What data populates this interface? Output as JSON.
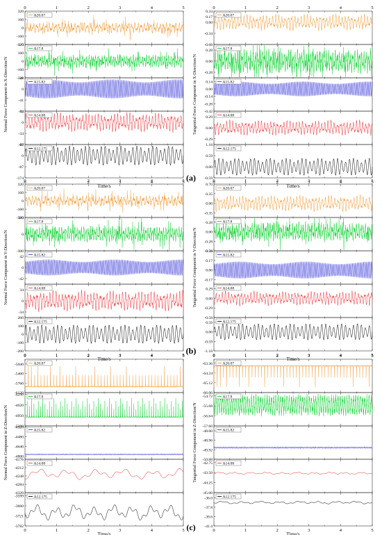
{
  "figure": {
    "panel_labels": [
      "(a)",
      "(b)",
      "(c)"
    ],
    "x_label": "Time/s",
    "x_ticks": [
      "0",
      "1",
      "2",
      "3",
      "4",
      "5"
    ],
    "strip_labels": [
      "A20.07",
      "A17.8",
      "A15.82",
      "A14.08",
      "A12.175"
    ],
    "colors": [
      "#f4a64a",
      "#19d43a",
      "#4b4bdc",
      "#ee4a4a",
      "#222222"
    ]
  },
  "chart_data": [
    {
      "type": "line",
      "panel": "(a)",
      "ylabel": "Normal Force Component in X-Direction/N",
      "xlabel": "Time/s",
      "xlim": [
        0,
        5
      ],
      "series": [
        {
          "name": "A20.07",
          "y_ticks": [
            "320",
            "160",
            "0",
            "-160",
            "-320"
          ],
          "ylim": [
            -320,
            320
          ],
          "amplitude": 110,
          "period": 0.1,
          "style": "spiky",
          "seed": 1
        },
        {
          "name": "A17.8",
          "y_ticks": [
            "320",
            "160",
            "0",
            "-160",
            "-320"
          ],
          "ylim": [
            -320,
            320
          ],
          "amplitude": 130,
          "period": 0.07,
          "style": "spiky",
          "seed": 2
        },
        {
          "name": "A15.82",
          "y_ticks": [
            "41",
            "0",
            "-41",
            "-82"
          ],
          "ylim": [
            -82,
            41
          ],
          "amplitude": 35,
          "period": 0.05,
          "style": "dense",
          "seed": 3
        },
        {
          "name": "A14.08",
          "y_ticks": [
            "34",
            "0",
            "-34",
            "-68"
          ],
          "ylim": [
            -68,
            34
          ],
          "amplitude": 30,
          "period": 0.1,
          "style": "mod",
          "seed": 4
        },
        {
          "name": "A12.175",
          "y_ticks": [
            "87",
            "0",
            "-87",
            "-174"
          ],
          "ylim": [
            -174,
            87
          ],
          "amplitude": 75,
          "period": 0.125,
          "style": "beat",
          "seed": 5
        }
      ]
    },
    {
      "type": "line",
      "panel": "(a)",
      "ylabel": "Tangential Force Component in X-Direction/N",
      "xlabel": "Time/s",
      "xlim": [
        0,
        5
      ],
      "series": [
        {
          "name": "A20.07",
          "y_ticks": [
            "0.34",
            "0.17",
            "0.00",
            "-0.34",
            "-0.68"
          ],
          "ylim": [
            -0.68,
            0.34
          ],
          "amplitude": 0.25,
          "period": 0.1,
          "style": "mod",
          "seed": 6
        },
        {
          "name": "A17.8",
          "y_ticks": [
            "0.28",
            "0.00",
            "-0.28"
          ],
          "ylim": [
            -0.42,
            0.42
          ],
          "amplitude": 0.32,
          "period": 0.07,
          "style": "spiky",
          "seed": 7
        },
        {
          "name": "A15.82",
          "y_ticks": [
            "0.14",
            "0.00",
            "-0.14",
            "-0.28",
            "-0.42"
          ],
          "ylim": [
            -0.42,
            0.21
          ],
          "amplitude": 0.14,
          "period": 0.05,
          "style": "dense",
          "seed": 8
        },
        {
          "name": "A14.08",
          "y_ticks": [
            "0.29",
            "0.00",
            "-0.29"
          ],
          "ylim": [
            -0.44,
            0.44
          ],
          "amplitude": 0.2,
          "period": 0.1,
          "style": "mod",
          "seed": 9
        },
        {
          "name": "A12.175",
          "y_ticks": [
            "1.18",
            "0.59",
            "0.00",
            "-0.59"
          ],
          "ylim": [
            -0.59,
            1.18
          ],
          "amplitude": 0.45,
          "period": 0.125,
          "style": "beat",
          "seed": 10
        }
      ]
    },
    {
      "type": "line",
      "panel": "(b)",
      "ylabel": "Normal Force Component in Y-Direction/N",
      "xlabel": "Time/s",
      "xlim": [
        0,
        5
      ],
      "series": [
        {
          "name": "A20.07",
          "y_ticks": [
            "320",
            "160",
            "0",
            "-160",
            "-320"
          ],
          "ylim": [
            -320,
            320
          ],
          "amplitude": 110,
          "period": 0.1,
          "style": "spiky",
          "seed": 11
        },
        {
          "name": "A17.8",
          "y_ticks": [
            "300",
            "0",
            "-300"
          ],
          "ylim": [
            -300,
            300
          ],
          "amplitude": 150,
          "period": 0.07,
          "style": "spiky",
          "seed": 12
        },
        {
          "name": "A15.82",
          "y_ticks": [
            "42",
            "0",
            "-42"
          ],
          "ylim": [
            -63,
            63
          ],
          "amplitude": 30,
          "period": 0.05,
          "style": "dense",
          "seed": 13
        },
        {
          "name": "A14.08",
          "y_ticks": [
            "34",
            "0",
            "-34"
          ],
          "ylim": [
            -51,
            51
          ],
          "amplitude": 32,
          "period": 0.1,
          "style": "mod",
          "seed": 14
        },
        {
          "name": "A12.175",
          "y_ticks": [
            "200",
            "100",
            "0",
            "-100",
            "-200"
          ],
          "ylim": [
            -200,
            200
          ],
          "amplitude": 110,
          "period": 0.125,
          "style": "beat",
          "seed": 15
        }
      ]
    },
    {
      "type": "line",
      "panel": "(b)",
      "ylabel": "Tangential Force Component in Y-Direction/N",
      "xlabel": "Time/s",
      "xlim": [
        0,
        5
      ],
      "series": [
        {
          "name": "A20.07",
          "y_ticks": [
            "0.70",
            "0.35",
            "0.00",
            "-0.35"
          ],
          "ylim": [
            -0.52,
            0.7
          ],
          "amplitude": 0.3,
          "period": 0.1,
          "style": "mod",
          "seed": 16
        },
        {
          "name": "A17.8",
          "y_ticks": [
            "0.28",
            "0.00",
            "-0.28",
            "-0.56"
          ],
          "ylim": [
            -0.56,
            0.42
          ],
          "amplitude": 0.3,
          "period": 0.07,
          "style": "spiky",
          "seed": 17
        },
        {
          "name": "A15.82",
          "y_ticks": [
            "0.34",
            "0.17",
            "0.00",
            "-0.17"
          ],
          "ylim": [
            -0.25,
            0.34
          ],
          "amplitude": 0.15,
          "period": 0.05,
          "style": "dense",
          "seed": 18
        },
        {
          "name": "A14.08",
          "y_ticks": [
            "0.29",
            "0.00",
            "-0.29",
            "-0.58"
          ],
          "ylim": [
            -0.58,
            0.43
          ],
          "amplitude": 0.22,
          "period": 0.1,
          "style": "mod",
          "seed": 19
        },
        {
          "name": "A12.175",
          "y_ticks": [
            "0.59",
            "0.00",
            "-0.59",
            "-1.18"
          ],
          "ylim": [
            -1.18,
            0.89
          ],
          "amplitude": 0.5,
          "period": 0.125,
          "style": "beat",
          "seed": 20
        }
      ]
    },
    {
      "type": "line",
      "panel": "(c)",
      "ylabel": "Normal Force Component in Z-Direction/N",
      "xlabel": "Time/s",
      "xlim": [
        0,
        5
      ],
      "series": [
        {
          "name": "A20.07",
          "y_ticks": [
            "-5040",
            "-5400",
            "-5760",
            "-6120"
          ],
          "ylim": [
            -6120,
            -4860
          ],
          "baseline": -5900,
          "amplitude": 780,
          "period": 0.1,
          "style": "impulse",
          "seed": 21
        },
        {
          "name": "A17.8",
          "y_ticks": [
            "-4290",
            "-4620",
            "-4950",
            "-5280"
          ],
          "ylim": [
            -5280,
            -4230
          ],
          "baseline": -5000,
          "amplitude": 680,
          "period": 0.07,
          "style": "impulse",
          "seed": 22
        },
        {
          "name": "A15.82",
          "y_ticks": [
            "-4320",
            "-4480",
            "-4640",
            "-4800"
          ],
          "ylim": [
            -4850,
            -4300
          ],
          "baseline": -4770,
          "amplitude": 12,
          "period": 0.05,
          "style": "flat",
          "seed": 23
        },
        {
          "name": "A14.08",
          "y_ticks": [
            "-4176",
            "-4212",
            "-4248",
            "-4284",
            "-4320"
          ],
          "ylim": [
            -4320,
            -4176
          ],
          "baseline": -4240,
          "amplitude": 22,
          "period": 0.9,
          "style": "wander",
          "seed": 24
        },
        {
          "name": "A12.175",
          "y_ticks": [
            "-3599",
            "-3660",
            "-3721",
            "-3782"
          ],
          "ylim": [
            -3782,
            -3580
          ],
          "baseline": -3700,
          "amplitude": 45,
          "period": 0.6,
          "style": "wander",
          "seed": 25
        }
      ]
    },
    {
      "type": "line",
      "panel": "(c)",
      "ylabel": "Tangential Force Component in Z-Direction/N",
      "xlabel": "Time/s",
      "xlim": [
        0,
        5
      ],
      "series": [
        {
          "name": "A20.07",
          "y_ticks": [
            "-63.36",
            "-64.24",
            "-65.12",
            "-66.00"
          ],
          "ylim": [
            -66.0,
            -63.0
          ],
          "baseline": -63.6,
          "amplitude": -1.9,
          "period": 0.1,
          "style": "impulse",
          "seed": 26
        },
        {
          "name": "A17.8",
          "y_ticks": [
            "-54.72",
            "-55.68",
            "-56.64",
            "-57.60"
          ],
          "ylim": [
            -57.6,
            -54.4
          ],
          "baseline": -55.6,
          "amplitude": 1.2,
          "period": 0.07,
          "style": "noisy",
          "seed": 27
        },
        {
          "name": "A15.82",
          "y_ticks": [
            "-48.00",
            "-48.96",
            "-49.92",
            "-50.88"
          ],
          "ylim": [
            -50.88,
            -47.5
          ],
          "baseline": -49.7,
          "amplitude": 0.1,
          "period": 0.05,
          "style": "flat",
          "seed": 28
        },
        {
          "name": "A14.08",
          "y_ticks": [
            "-42.75",
            "-43.50",
            "-44.25",
            "-45.00"
          ],
          "ylim": [
            -45.0,
            -42.5
          ],
          "baseline": -43.55,
          "amplitude": 0.08,
          "period": 0.5,
          "style": "wander",
          "seed": 29
        },
        {
          "name": "A12.175",
          "y_ticks": [
            "-36.0",
            "-37.8",
            "-39.6",
            "-41.4"
          ],
          "ylim": [
            -41.4,
            -35.0
          ],
          "baseline": -36.9,
          "amplitude": 0.25,
          "period": 0.6,
          "style": "wander",
          "seed": 30
        }
      ]
    }
  ]
}
